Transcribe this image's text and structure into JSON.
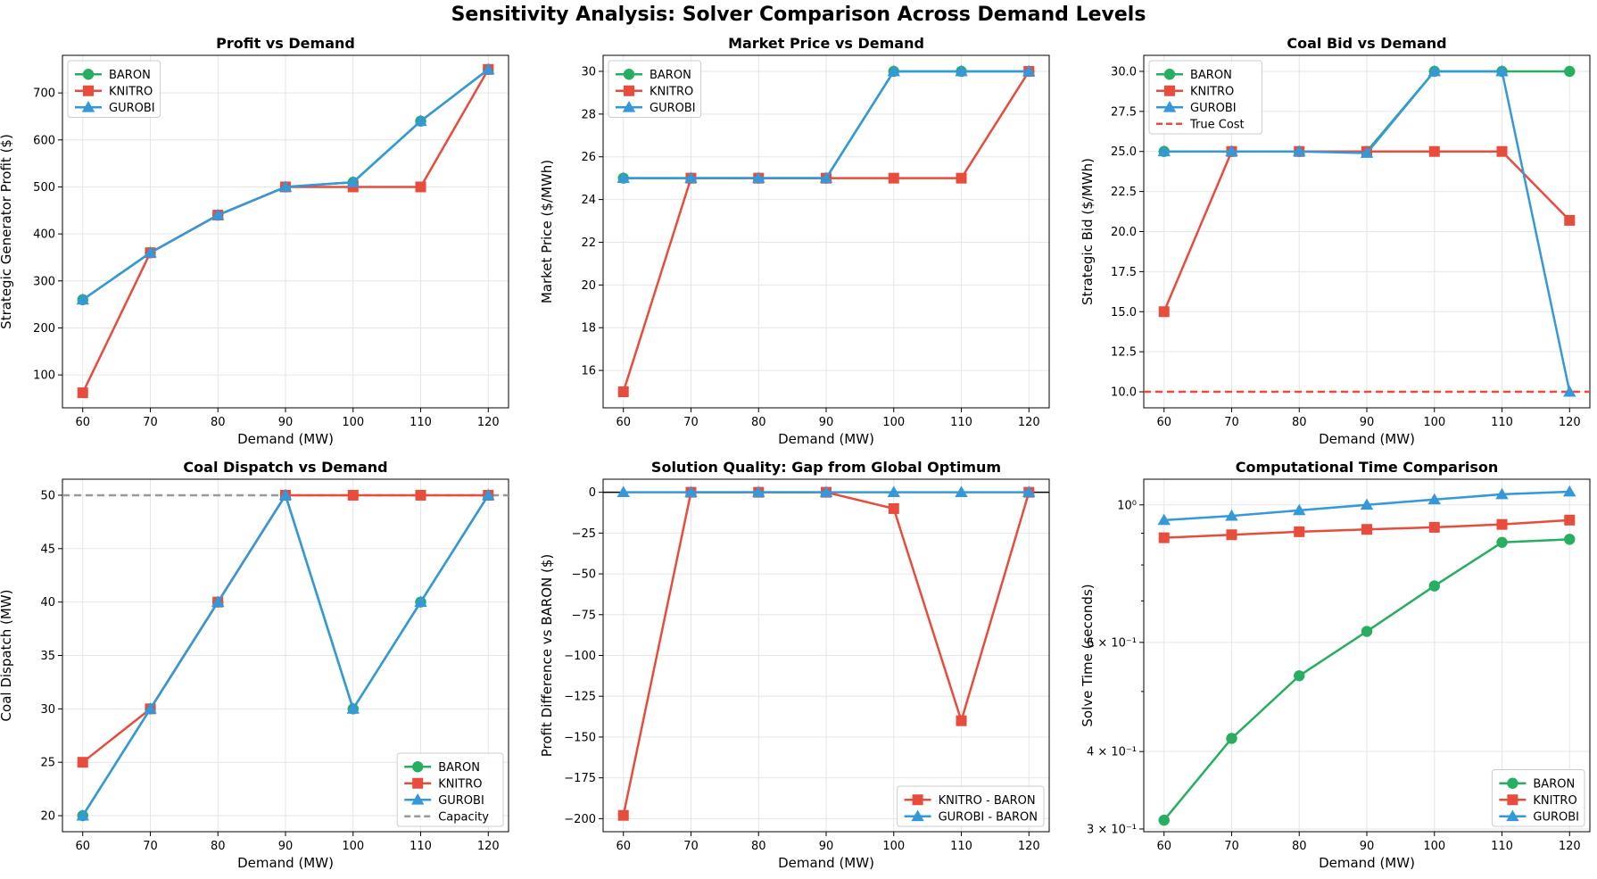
{
  "suptitle": "Sensitivity Analysis: Solver Comparison Across Demand Levels",
  "colors": {
    "baron": "#27ae60",
    "knitro": "#e74c3c",
    "gurobi": "#3498db",
    "grid": "#e6e6e6",
    "ref_red": "#e74c3c",
    "ref_gray": "#999999"
  },
  "chart_data": [
    {
      "type": "line",
      "title": "Profit vs Demand",
      "xlabel": "Demand (MW)",
      "ylabel": "Strategic Generator Profit ($)",
      "x": [
        60,
        70,
        80,
        90,
        100,
        110,
        120
      ],
      "xlim": [
        57,
        123
      ],
      "ylim": [
        30,
        780
      ],
      "yscale": "linear",
      "xticks": [
        60,
        70,
        80,
        90,
        100,
        110,
        120
      ],
      "yticks": [
        100,
        200,
        300,
        400,
        500,
        600,
        700
      ],
      "ytick_labels": [
        "100",
        "200",
        "300",
        "400",
        "500",
        "600",
        "700"
      ],
      "legend_loc": "upper-left",
      "series": [
        {
          "name": "BARON",
          "marker": "circle",
          "color": "#27ae60",
          "values": [
            260,
            360,
            440,
            500,
            510,
            640,
            750
          ]
        },
        {
          "name": "KNITRO",
          "marker": "square",
          "color": "#e74c3c",
          "values": [
            62,
            360,
            440,
            500,
            500,
            500,
            750
          ]
        },
        {
          "name": "GUROBI",
          "marker": "triangle",
          "color": "#3498db",
          "values": [
            260,
            360,
            440,
            500,
            510,
            640,
            750
          ]
        }
      ],
      "hlines": []
    },
    {
      "type": "line",
      "title": "Market Price vs Demand",
      "xlabel": "Demand (MW)",
      "ylabel": "Market Price ($/MWh)",
      "x": [
        60,
        70,
        80,
        90,
        100,
        110,
        120
      ],
      "xlim": [
        57,
        123
      ],
      "ylim": [
        14.25,
        30.75
      ],
      "yscale": "linear",
      "xticks": [
        60,
        70,
        80,
        90,
        100,
        110,
        120
      ],
      "yticks": [
        16,
        18,
        20,
        22,
        24,
        26,
        28,
        30
      ],
      "ytick_labels": [
        "16",
        "18",
        "20",
        "22",
        "24",
        "26",
        "28",
        "30"
      ],
      "legend_loc": "upper-left",
      "series": [
        {
          "name": "BARON",
          "marker": "circle",
          "color": "#27ae60",
          "values": [
            25,
            25,
            25,
            25,
            30,
            30,
            30
          ]
        },
        {
          "name": "KNITRO",
          "marker": "square",
          "color": "#e74c3c",
          "values": [
            15,
            25,
            25,
            25,
            25,
            25,
            30
          ]
        },
        {
          "name": "GUROBI",
          "marker": "triangle",
          "color": "#3498db",
          "values": [
            25,
            25,
            25,
            25,
            30,
            30,
            30
          ]
        }
      ],
      "hlines": []
    },
    {
      "type": "line",
      "title": "Coal Bid vs Demand",
      "xlabel": "Demand (MW)",
      "ylabel": "Strategic Bid ($/MWh)",
      "x": [
        60,
        70,
        80,
        90,
        100,
        110,
        120
      ],
      "xlim": [
        57,
        123
      ],
      "ylim": [
        9,
        31
      ],
      "yscale": "linear",
      "xticks": [
        60,
        70,
        80,
        90,
        100,
        110,
        120
      ],
      "yticks": [
        10,
        12.5,
        15,
        17.5,
        20,
        22.5,
        25,
        27.5,
        30
      ],
      "ytick_labels": [
        "10.0",
        "12.5",
        "15.0",
        "17.5",
        "20.0",
        "22.5",
        "25.0",
        "27.5",
        "30.0"
      ],
      "legend_loc": "upper-left",
      "series": [
        {
          "name": "BARON",
          "marker": "circle",
          "color": "#27ae60",
          "values": [
            25,
            25,
            25,
            25,
            30,
            30,
            30
          ]
        },
        {
          "name": "KNITRO",
          "marker": "square",
          "color": "#e74c3c",
          "values": [
            15,
            25,
            25,
            25,
            25,
            25,
            20.7
          ]
        },
        {
          "name": "GUROBI",
          "marker": "triangle",
          "color": "#3498db",
          "values": [
            25,
            25,
            25,
            24.9,
            30,
            30,
            10
          ]
        }
      ],
      "hlines": [
        {
          "name": "True Cost",
          "y": 10,
          "color": "#e74c3c",
          "style": "dashed",
          "in_legend": true
        }
      ]
    },
    {
      "type": "line",
      "title": "Coal Dispatch vs Demand",
      "xlabel": "Demand (MW)",
      "ylabel": "Coal Dispatch (MW)",
      "x": [
        60,
        70,
        80,
        90,
        100,
        110,
        120
      ],
      "xlim": [
        57,
        123
      ],
      "ylim": [
        18.5,
        51.5
      ],
      "yscale": "linear",
      "xticks": [
        60,
        70,
        80,
        90,
        100,
        110,
        120
      ],
      "yticks": [
        20,
        25,
        30,
        35,
        40,
        45,
        50
      ],
      "ytick_labels": [
        "20",
        "25",
        "30",
        "35",
        "40",
        "45",
        "50"
      ],
      "legend_loc": "lower-right",
      "series": [
        {
          "name": "BARON",
          "marker": "circle",
          "color": "#27ae60",
          "values": [
            20,
            30,
            40,
            50,
            30,
            40,
            50
          ]
        },
        {
          "name": "KNITRO",
          "marker": "square",
          "color": "#e74c3c",
          "values": [
            25,
            30,
            40,
            50,
            50,
            50,
            50
          ]
        },
        {
          "name": "GUROBI",
          "marker": "triangle",
          "color": "#3498db",
          "values": [
            20,
            30,
            40,
            50,
            30,
            40,
            50
          ]
        }
      ],
      "hlines": [
        {
          "name": "Capacity",
          "y": 50,
          "color": "#999999",
          "style": "dashed",
          "in_legend": true
        }
      ]
    },
    {
      "type": "line",
      "title": "Solution Quality: Gap from Global Optimum",
      "xlabel": "Demand (MW)",
      "ylabel": "Profit Difference vs BARON ($)",
      "x": [
        60,
        70,
        80,
        90,
        100,
        110,
        120
      ],
      "xlim": [
        57,
        123
      ],
      "ylim": [
        -208,
        8
      ],
      "yscale": "linear",
      "xticks": [
        60,
        70,
        80,
        90,
        100,
        110,
        120
      ],
      "yticks": [
        0,
        -25,
        -50,
        -75,
        -100,
        -125,
        -150,
        -175,
        -200
      ],
      "ytick_labels": [
        "0",
        "−25",
        "−50",
        "−75",
        "−100",
        "−125",
        "−150",
        "−175",
        "−200"
      ],
      "legend_loc": "lower-right",
      "series": [
        {
          "name": "KNITRO - BARON",
          "marker": "square",
          "color": "#e74c3c",
          "values": [
            -198,
            0,
            0,
            0,
            -10,
            -140,
            0
          ]
        },
        {
          "name": "GUROBI - BARON",
          "marker": "triangle",
          "color": "#3498db",
          "values": [
            0,
            0,
            0,
            0,
            0,
            0,
            0
          ]
        }
      ],
      "hlines": [
        {
          "name": "zero",
          "y": 0,
          "color": "#000000",
          "style": "solid",
          "in_legend": false
        }
      ]
    },
    {
      "type": "line",
      "title": "Computational Time Comparison",
      "xlabel": "Demand (MW)",
      "ylabel": "Solve Time (seconds)",
      "x": [
        60,
        70,
        80,
        90,
        100,
        110,
        120
      ],
      "xlim": [
        57,
        123
      ],
      "ylim": [
        0.297,
        1.1
      ],
      "yscale": "log",
      "xticks": [
        60,
        70,
        80,
        90,
        100,
        110,
        120
      ],
      "yticks": [
        0.3,
        0.4,
        0.6,
        1.0
      ],
      "ytick_labels": [
        "3 × 10⁻¹",
        "4 × 10⁻¹",
        "6 × 10⁻¹",
        "10⁰"
      ],
      "yticks_minor": [
        0.5,
        0.7,
        0.8,
        0.9
      ],
      "legend_loc": "lower-right",
      "series": [
        {
          "name": "BARON",
          "marker": "circle",
          "color": "#27ae60",
          "values": [
            0.31,
            0.42,
            0.53,
            0.625,
            0.74,
            0.87,
            0.88
          ]
        },
        {
          "name": "KNITRO",
          "marker": "square",
          "color": "#e74c3c",
          "values": [
            0.885,
            0.895,
            0.905,
            0.913,
            0.92,
            0.93,
            0.945
          ]
        },
        {
          "name": "GUROBI",
          "marker": "triangle",
          "color": "#3498db",
          "values": [
            0.945,
            0.96,
            0.98,
            1.0,
            1.02,
            1.04,
            1.05
          ]
        }
      ],
      "hlines": []
    }
  ]
}
